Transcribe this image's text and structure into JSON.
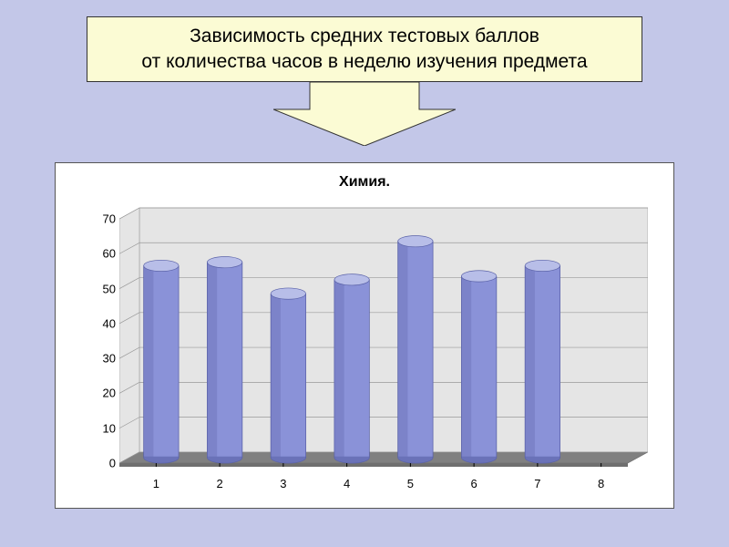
{
  "title": {
    "line1": "Зависимость средних тестовых баллов",
    "line2": "от количества часов в неделю изучения предмета"
  },
  "chart": {
    "type": "bar-3d-cylinder",
    "title": "Химия.",
    "title_fontsize": 16,
    "title_fontweight": "bold",
    "categories": [
      "1",
      "2",
      "3",
      "4",
      "5",
      "6",
      "7",
      "8"
    ],
    "values": [
      55,
      56,
      47,
      51,
      62,
      52,
      55,
      null
    ],
    "bar_fill": "#8a92d8",
    "bar_side_shade": "#6a72b8",
    "bar_top": "#b8bee8",
    "floor_color": "#808080",
    "wall_color": "#e5e5e5",
    "grid_color": "#9a9a9a",
    "background_color": "#ffffff",
    "ylim": [
      0,
      70
    ],
    "ytick_step": 10,
    "label_fontsize": 13,
    "bar_width_ratio": 0.55,
    "depth": 22,
    "panel_border": "#555555"
  },
  "page": {
    "bg": "#c3c7e8",
    "title_box_bg": "#fbfbd4",
    "title_box_border": "#333333",
    "arrow_fill": "#fbfbd4",
    "arrow_stroke": "#333333"
  }
}
